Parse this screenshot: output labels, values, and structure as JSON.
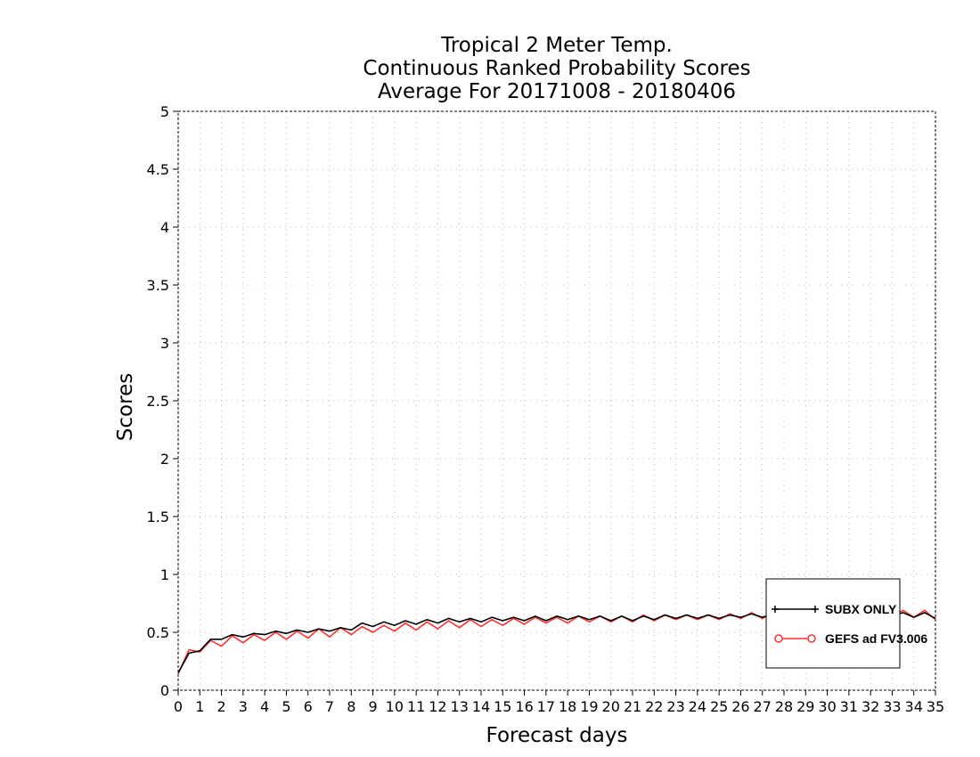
{
  "chart_data": {
    "type": "line",
    "title_lines": [
      "Tropical 2 Meter Temp.",
      "Continuous Ranked Probability Scores",
      "Average For 20171008 - 20180406"
    ],
    "xlabel": "Forecast days",
    "ylabel": "Scores",
    "xlim": [
      0,
      35
    ],
    "ylim": [
      0,
      5
    ],
    "xticks": [
      0,
      1,
      2,
      3,
      4,
      5,
      6,
      7,
      8,
      9,
      10,
      11,
      12,
      13,
      14,
      15,
      16,
      17,
      18,
      19,
      20,
      21,
      22,
      23,
      24,
      25,
      26,
      27,
      28,
      29,
      30,
      31,
      32,
      33,
      34,
      35
    ],
    "yticks": [
      "0",
      "0.5",
      "1",
      "1.5",
      "2",
      "2.5",
      "3",
      "3.5",
      "4",
      "4.5",
      "5"
    ],
    "grid": true,
    "legend_position": "bottom-right",
    "x": [
      0,
      0.5,
      1,
      1.5,
      2,
      2.5,
      3,
      3.5,
      4,
      4.5,
      5,
      5.5,
      6,
      6.5,
      7,
      7.5,
      8,
      8.5,
      9,
      9.5,
      10,
      10.5,
      11,
      11.5,
      12,
      12.5,
      13,
      13.5,
      14,
      14.5,
      15,
      15.5,
      16,
      16.5,
      17,
      17.5,
      18,
      18.5,
      19,
      19.5,
      20,
      20.5,
      21,
      21.5,
      22,
      22.5,
      23,
      23.5,
      24,
      24.5,
      25,
      25.5,
      26,
      26.5,
      27,
      27.5,
      28,
      28.5,
      29,
      29.5,
      30,
      30.5,
      31,
      31.5,
      32,
      32.5,
      33,
      33.5,
      34,
      34.5,
      35
    ],
    "series": [
      {
        "name": "SUBX ONLY",
        "color": "#000000",
        "marker": "plus",
        "values": [
          0.15,
          0.32,
          0.34,
          0.44,
          0.44,
          0.48,
          0.46,
          0.49,
          0.48,
          0.51,
          0.49,
          0.52,
          0.5,
          0.53,
          0.51,
          0.54,
          0.52,
          0.58,
          0.55,
          0.59,
          0.56,
          0.6,
          0.57,
          0.61,
          0.58,
          0.62,
          0.59,
          0.62,
          0.59,
          0.63,
          0.6,
          0.63,
          0.6,
          0.64,
          0.6,
          0.64,
          0.61,
          0.64,
          0.61,
          0.64,
          0.6,
          0.64,
          0.6,
          0.64,
          0.61,
          0.65,
          0.62,
          0.65,
          0.62,
          0.65,
          0.62,
          0.65,
          0.63,
          0.66,
          0.63,
          0.66,
          0.63,
          0.66,
          0.63,
          0.66,
          0.64,
          0.67,
          0.64,
          0.67,
          0.64,
          0.67,
          0.64,
          0.67,
          0.63,
          0.67,
          0.62
        ]
      },
      {
        "name": "GEFS ad FV3.006",
        "color": "#ff3030",
        "marker": "circle",
        "values": [
          0.14,
          0.35,
          0.33,
          0.43,
          0.38,
          0.47,
          0.41,
          0.48,
          0.43,
          0.5,
          0.44,
          0.51,
          0.45,
          0.53,
          0.46,
          0.54,
          0.48,
          0.55,
          0.5,
          0.56,
          0.51,
          0.58,
          0.52,
          0.59,
          0.53,
          0.6,
          0.54,
          0.61,
          0.55,
          0.61,
          0.56,
          0.62,
          0.57,
          0.63,
          0.58,
          0.63,
          0.58,
          0.64,
          0.59,
          0.64,
          0.59,
          0.64,
          0.59,
          0.65,
          0.6,
          0.65,
          0.61,
          0.65,
          0.61,
          0.65,
          0.61,
          0.66,
          0.62,
          0.67,
          0.62,
          0.67,
          0.63,
          0.67,
          0.63,
          0.67,
          0.63,
          0.67,
          0.63,
          0.68,
          0.64,
          0.68,
          0.64,
          0.69,
          0.63,
          0.69,
          0.61
        ]
      }
    ]
  }
}
